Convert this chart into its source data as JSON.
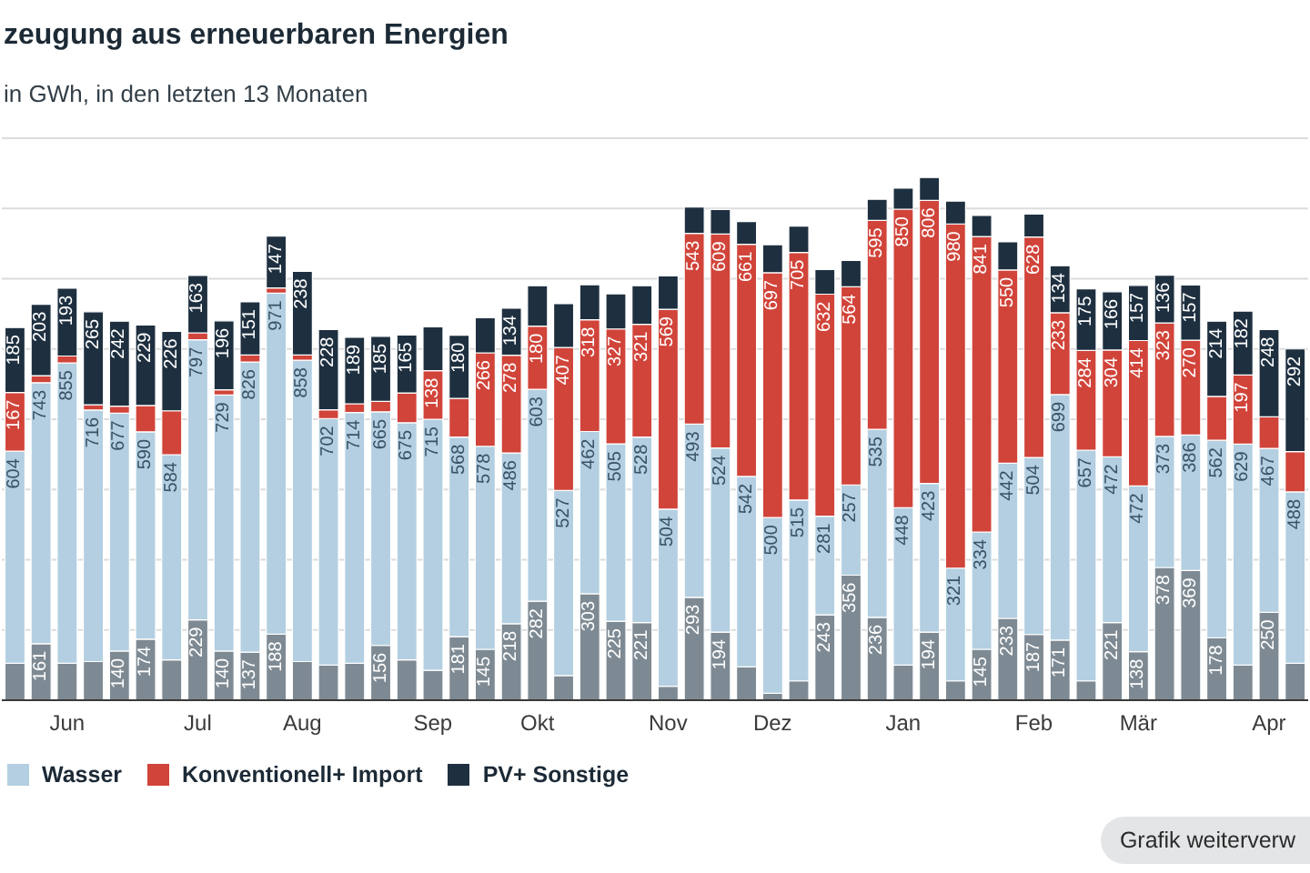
{
  "chart_data": {
    "type": "bar",
    "title": "zeugung aus erneuerbaren Energien",
    "subtitle": "in GWh, in den letzten 13 Monaten",
    "categories": [
      null,
      null,
      "Jun",
      null,
      null,
      null,
      null,
      "Jul",
      null,
      null,
      null,
      "Aug",
      null,
      null,
      null,
      null,
      "Sep",
      null,
      null,
      null,
      "Okt",
      null,
      null,
      null,
      null,
      "Nov",
      null,
      null,
      null,
      "Dez",
      null,
      null,
      null,
      null,
      "Jan",
      null,
      null,
      null,
      null,
      "Feb",
      null,
      null,
      null,
      "Mär",
      null,
      null,
      null,
      null,
      "Apr",
      null
    ],
    "series": [
      {
        "color": "#7e8a93",
        "values": [
          105,
          161,
          105,
          110,
          140,
          174,
          115,
          229,
          140,
          137,
          188,
          110,
          100,
          105,
          156,
          115,
          85,
          181,
          145,
          218,
          282,
          70,
          303,
          225,
          221,
          40,
          293,
          194,
          95,
          20,
          55,
          243,
          356,
          236,
          100,
          194,
          55,
          145,
          233,
          187,
          171,
          55,
          221,
          138,
          378,
          369,
          178,
          100,
          250,
          105
        ],
        "value_labels": [
          null,
          "161",
          null,
          null,
          "140",
          "174",
          null,
          "229",
          "140",
          "137",
          "188",
          null,
          null,
          null,
          "156",
          null,
          null,
          "181",
          "145",
          "218",
          "282",
          null,
          "303",
          "225",
          "221",
          null,
          "293",
          "194",
          null,
          null,
          null,
          "243",
          "356",
          "236",
          null,
          "194",
          null,
          "145",
          "233",
          "187",
          "171",
          null,
          "221",
          "138",
          "378",
          "369",
          "178",
          null,
          "250",
          null
        ]
      },
      {
        "name": "Wasser",
        "color": "#b3cfe1",
        "values": [
          604,
          743,
          855,
          716,
          677,
          590,
          584,
          797,
          729,
          826,
          971,
          858,
          702,
          714,
          665,
          675,
          715,
          568,
          578,
          486,
          603,
          527,
          462,
          505,
          528,
          504,
          493,
          524,
          542,
          500,
          515,
          281,
          257,
          535,
          448,
          423,
          321,
          334,
          442,
          504,
          699,
          657,
          472,
          472,
          373,
          386,
          562,
          629,
          467,
          488
        ],
        "value_labels": [
          "604",
          "743",
          "855",
          "716",
          "677",
          "590",
          "584",
          "797",
          "729",
          "826",
          "971",
          "858",
          "702",
          "714",
          "665",
          "675",
          "715",
          "568",
          "578",
          "486",
          "603",
          "527",
          "462",
          "505",
          "528",
          "504",
          "493",
          "524",
          "542",
          "500",
          "515",
          "281",
          "257",
          "535",
          "448",
          "423",
          "321",
          "334",
          "442",
          "504",
          "699",
          "657",
          "472",
          "472",
          "373",
          "386",
          "562",
          "629",
          "467",
          "488"
        ]
      },
      {
        "name": "Konventionell+ Import",
        "color": "#d1443a",
        "values": [
          167,
          20,
          20,
          15,
          20,
          75,
          125,
          20,
          15,
          20,
          15,
          15,
          25,
          25,
          30,
          85,
          138,
          110,
          266,
          278,
          180,
          407,
          318,
          327,
          321,
          569,
          543,
          609,
          661,
          697,
          705,
          632,
          564,
          595,
          850,
          806,
          980,
          841,
          550,
          628,
          233,
          284,
          304,
          414,
          323,
          270,
          125,
          197,
          90,
          115
        ],
        "value_labels": [
          "167",
          null,
          null,
          null,
          null,
          null,
          null,
          null,
          null,
          null,
          null,
          null,
          null,
          null,
          null,
          null,
          "138",
          null,
          "266",
          "278",
          "180",
          "407",
          "318",
          "327",
          "321",
          "569",
          "543",
          "609",
          "661",
          "697",
          "705",
          "632",
          "564",
          "595",
          "850",
          "806",
          "980",
          "841",
          "550",
          "628",
          "233",
          "284",
          "304",
          "414",
          "323",
          "270",
          null,
          "197",
          null,
          null
        ]
      },
      {
        "name": "PV+ Sonstige",
        "color": "#1e3040",
        "values": [
          185,
          203,
          193,
          265,
          242,
          229,
          226,
          163,
          196,
          151,
          147,
          238,
          228,
          189,
          185,
          165,
          125,
          180,
          100,
          134,
          115,
          125,
          100,
          100,
          110,
          95,
          75,
          70,
          65,
          80,
          75,
          70,
          75,
          60,
          60,
          65,
          65,
          60,
          80,
          65,
          134,
          175,
          166,
          157,
          136,
          157,
          214,
          182,
          248,
          292
        ],
        "value_labels": [
          "185",
          "203",
          "193",
          "265",
          "242",
          "229",
          "226",
          "163",
          "196",
          "151",
          "147",
          "238",
          "228",
          "189",
          "185",
          "165",
          null,
          "180",
          null,
          "134",
          null,
          null,
          null,
          null,
          null,
          null,
          null,
          null,
          null,
          null,
          null,
          null,
          null,
          null,
          null,
          null,
          null,
          null,
          null,
          null,
          "134",
          "175",
          "166",
          "157",
          "136",
          "157",
          "214",
          "182",
          "248",
          "292"
        ]
      }
    ],
    "stacked": true,
    "ylim": [
      0,
      1600
    ],
    "tick_labels": "x",
    "grid": "y",
    "legend": "bottom left",
    "annotations": [
      "Grafik weiterverw"
    ]
  }
}
